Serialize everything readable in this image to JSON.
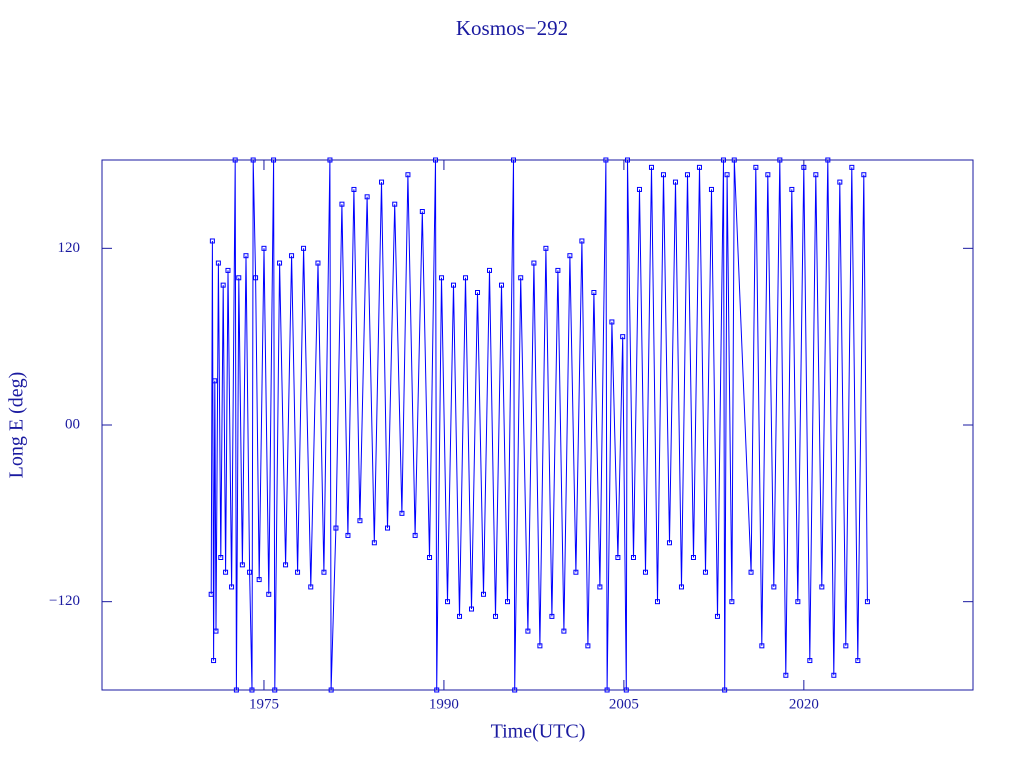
{
  "chart_data": {
    "type": "line",
    "title": "Kosmos−292",
    "x_label": "Time(UTC)",
    "y_label": "Long E (deg)",
    "xlim": [
      1961.5,
      2034.1
    ],
    "ylim": [
      -180,
      180
    ],
    "xticks": [
      1975,
      1990,
      2005,
      2020
    ],
    "yticks": [
      {
        "value": -120,
        "label": "−120"
      },
      {
        "value": 0,
        "label": "00"
      },
      120
    ],
    "series": [
      {
        "color": "#0000ff",
        "x": [
          1970.6,
          1970.7,
          1970.8,
          1970.9,
          1971.0,
          1971.2,
          1971.4,
          1971.6,
          1971.8,
          1972.0,
          1972.3,
          1972.6,
          1972.7,
          1972.9,
          1973.2,
          1973.5,
          1973.8,
          1974.0,
          1974.1,
          1974.3,
          1974.6,
          1975.0,
          1975.4,
          1975.8,
          1975.9,
          1976.3,
          1976.8,
          1977.3,
          1977.8,
          1978.3,
          1978.9,
          1979.5,
          1980.0,
          1980.5,
          1980.6,
          1981.0,
          1981.5,
          1982.0,
          1982.5,
          1983.0,
          1983.6,
          1984.2,
          1984.8,
          1985.3,
          1985.9,
          1986.5,
          1987.0,
          1987.6,
          1988.2,
          1988.8,
          1989.3,
          1989.4,
          1989.8,
          1990.3,
          1990.8,
          1991.3,
          1991.8,
          1992.3,
          1992.8,
          1993.3,
          1993.8,
          1994.3,
          1994.8,
          1995.3,
          1995.8,
          1995.9,
          1996.4,
          1997.0,
          1997.5,
          1998.0,
          1998.5,
          1999.0,
          1999.5,
          2000.0,
          2000.5,
          2001.0,
          2001.5,
          2002.0,
          2002.5,
          2003.0,
          2003.5,
          2003.6,
          2004.0,
          2004.5,
          2004.9,
          2005.2,
          2005.3,
          2005.8,
          2006.3,
          2006.8,
          2007.3,
          2007.8,
          2008.3,
          2008.8,
          2009.3,
          2009.8,
          2010.3,
          2010.8,
          2011.3,
          2011.8,
          2012.3,
          2012.8,
          2013.3,
          2013.4,
          2013.6,
          2014.0,
          2014.2,
          2015.6,
          2016.0,
          2016.5,
          2017.0,
          2017.5,
          2018.0,
          2018.5,
          2019.0,
          2019.5,
          2020.0,
          2020.5,
          2021.0,
          2021.5,
          2022.0,
          2022.5,
          2023.0,
          2023.5,
          2024.0,
          2024.5,
          2025.0,
          2025.3
        ],
        "values": [
          -115,
          125,
          -160,
          30,
          -140,
          110,
          -90,
          95,
          -100,
          105,
          -110,
          180,
          -180,
          100,
          -95,
          115,
          -100,
          -180,
          180,
          100,
          -105,
          120,
          -115,
          180,
          -180,
          110,
          -95,
          115,
          -100,
          120,
          -110,
          110,
          -100,
          180,
          -180,
          -70,
          150,
          -75,
          160,
          -65,
          155,
          -80,
          165,
          -70,
          150,
          -60,
          170,
          -75,
          145,
          -90,
          180,
          -180,
          100,
          -120,
          95,
          -130,
          100,
          -125,
          90,
          -115,
          105,
          -130,
          95,
          -120,
          180,
          -180,
          100,
          -140,
          110,
          -150,
          120,
          -130,
          105,
          -140,
          115,
          -100,
          125,
          -150,
          90,
          -110,
          180,
          -180,
          70,
          -90,
          60,
          -180,
          180,
          -90,
          160,
          -100,
          175,
          -120,
          170,
          -80,
          165,
          -110,
          170,
          -90,
          175,
          -100,
          160,
          -130,
          180,
          -180,
          170,
          -120,
          180,
          -100,
          175,
          -150,
          170,
          -110,
          180,
          -170,
          160,
          -120,
          175,
          -160,
          170,
          -110,
          180,
          -170,
          165,
          -150,
          175,
          -160,
          170,
          -120
        ]
      }
    ]
  }
}
